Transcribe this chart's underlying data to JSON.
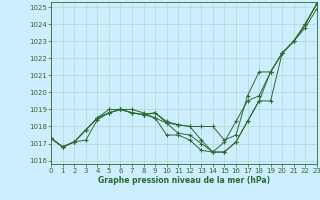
{
  "title": "Graphe pression niveau de la mer (hPa)",
  "background_color": "#cceeff",
  "grid_color": "#b0d8cc",
  "line_color": "#2d6a2d",
  "xlim": [
    0,
    23
  ],
  "ylim": [
    1015.8,
    1025.3
  ],
  "yticks": [
    1016,
    1017,
    1018,
    1019,
    1020,
    1021,
    1022,
    1023,
    1024,
    1025
  ],
  "xticks": [
    0,
    1,
    2,
    3,
    4,
    5,
    6,
    7,
    8,
    9,
    10,
    11,
    12,
    13,
    14,
    15,
    16,
    17,
    18,
    19,
    20,
    21,
    22,
    23
  ],
  "series": [
    [
      1017.3,
      1016.8,
      1017.1,
      1017.2,
      1018.4,
      1018.8,
      1019.0,
      1019.0,
      1018.8,
      1018.5,
      1018.2,
      1017.6,
      1017.5,
      1017.0,
      1016.5,
      1016.5,
      1017.1,
      1018.3,
      1019.5,
      1019.5,
      1022.3,
      1023.0,
      1024.0,
      1025.2
    ],
    [
      1017.3,
      1016.8,
      1017.1,
      1017.8,
      1018.5,
      1019.0,
      1019.0,
      1018.8,
      1018.7,
      1018.8,
      1018.3,
      1018.1,
      1018.0,
      1018.0,
      1018.0,
      1017.2,
      1017.5,
      1019.8,
      1021.2,
      1021.2,
      1022.3,
      1023.0,
      1024.0,
      1025.2
    ],
    [
      1017.3,
      1016.8,
      1017.1,
      1017.8,
      1018.5,
      1018.8,
      1019.0,
      1018.8,
      1018.7,
      1018.8,
      1018.2,
      1018.1,
      1018.0,
      1017.2,
      1016.5,
      1016.5,
      1017.1,
      1018.3,
      1019.5,
      1021.2,
      1022.3,
      1023.0,
      1024.0,
      1025.2
    ],
    [
      1017.3,
      1016.8,
      1017.1,
      1017.8,
      1018.5,
      1018.8,
      1019.0,
      1018.8,
      1018.7,
      1018.5,
      1017.5,
      1017.5,
      1017.2,
      1016.6,
      1016.5,
      1017.1,
      1018.3,
      1019.5,
      1019.8,
      1021.2,
      1022.3,
      1023.0,
      1023.8,
      1024.9
    ]
  ]
}
